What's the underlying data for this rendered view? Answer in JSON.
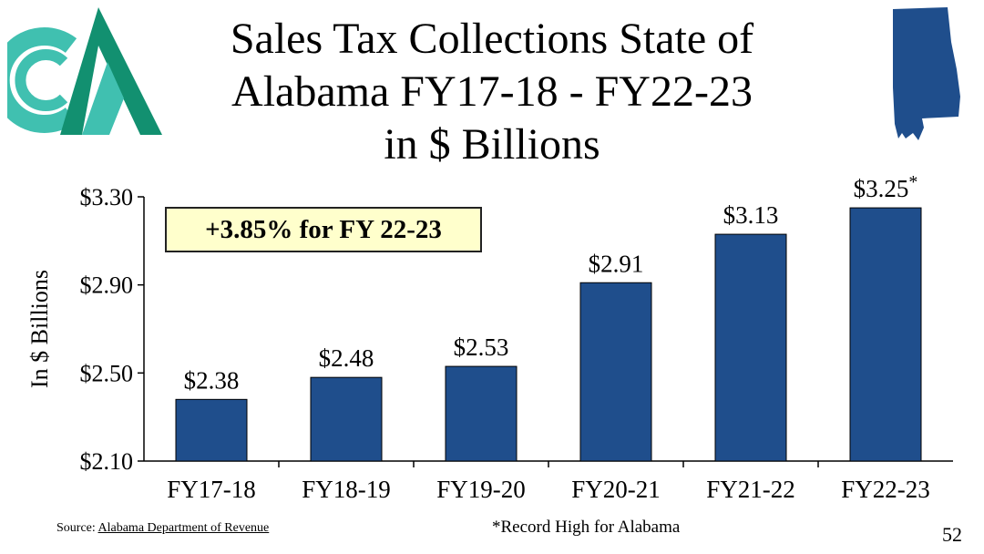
{
  "title_lines": [
    "Sales Tax Collections State of",
    "Alabama FY17-18 - FY22-23",
    "in $ Billions"
  ],
  "callout": "+3.85% for FY 22-23",
  "source_prefix": "Source: ",
  "source_link": "Alabama Department of Revenue",
  "footnote": "*Record High for Alabama",
  "page_number": "52",
  "colors": {
    "bar": "#1f4e8c",
    "logo_teal": "#40c0b0",
    "logo_green": "#129070",
    "state_fill": "#1f4e8c",
    "callout_bg": "#ffffcc"
  },
  "chart_data": {
    "type": "bar",
    "title": "Sales Tax Collections State of Alabama FY17-18 - FY22-23 in $ Billions",
    "ylabel": "In $ Billions",
    "xlabel": "",
    "categories": [
      "FY17-18",
      "FY18-19",
      "FY19-20",
      "FY20-21",
      "FY21-22",
      "FY22-23"
    ],
    "values": [
      2.38,
      2.48,
      2.53,
      2.91,
      3.13,
      3.25
    ],
    "data_labels": [
      "$2.38",
      "$2.48",
      "$2.53",
      "$2.91",
      "$3.13",
      "$3.25"
    ],
    "label_suffix": [
      "",
      "",
      "",
      "",
      "",
      "*"
    ],
    "ylim": [
      2.1,
      3.3
    ],
    "yticks": [
      2.1,
      2.5,
      2.9,
      3.3
    ],
    "ytick_labels": [
      "$2.10",
      "$2.50",
      "$2.90",
      "$3.30"
    ],
    "grid": false,
    "legend": "none"
  }
}
